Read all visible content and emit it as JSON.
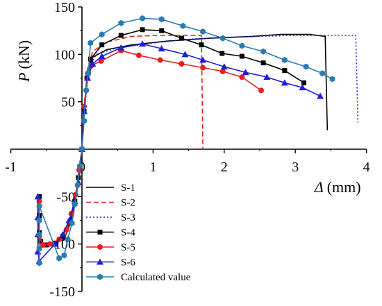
{
  "chart_data": {
    "type": "line",
    "title": "",
    "xlabel": "Δ",
    "xlabel_unit": "(mm)",
    "ylabel": "P",
    "ylabel_unit": "(kN)",
    "xlim": [
      -1,
      4
    ],
    "ylim": [
      -150,
      150
    ],
    "x_ticks": [
      -1,
      0,
      1,
      2,
      3,
      4
    ],
    "x_tick_labels": [
      "-1",
      "0",
      "1",
      "2",
      "3",
      "4"
    ],
    "y_ticks": [
      -150,
      -100,
      -50,
      50,
      100,
      150
    ],
    "y_tick_labels": [
      "-150",
      "-100",
      "-50",
      "50",
      "100",
      "150"
    ],
    "grid": false,
    "legend_position": "bottom-left",
    "series": [
      {
        "name": "S-1",
        "color": "#000000",
        "dash": "solid",
        "marker": "none",
        "points": [
          [
            -0.62,
            -50
          ],
          [
            -0.62,
            -75
          ],
          [
            -0.61,
            -95
          ],
          [
            -0.55,
            -100
          ],
          [
            -0.4,
            -100
          ],
          [
            -0.25,
            -95
          ],
          [
            -0.15,
            -75
          ],
          [
            -0.08,
            -45
          ],
          [
            -0.03,
            -15
          ],
          [
            0,
            0
          ],
          [
            0.03,
            40
          ],
          [
            0.08,
            80
          ],
          [
            0.15,
            97
          ],
          [
            0.35,
            105
          ],
          [
            0.7,
            110
          ],
          [
            1.2,
            114
          ],
          [
            1.8,
            117
          ],
          [
            2.4,
            119
          ],
          [
            2.8,
            121
          ],
          [
            3.2,
            121
          ],
          [
            3.42,
            119
          ],
          [
            3.45,
            20
          ]
        ]
      },
      {
        "name": "S-2",
        "color": "#e8201c",
        "dash": "dashed",
        "marker": "none",
        "points": [
          [
            -0.6,
            -55
          ],
          [
            -0.6,
            -80
          ],
          [
            -0.6,
            -97
          ],
          [
            -0.52,
            -101
          ],
          [
            -0.35,
            -99
          ],
          [
            -0.22,
            -90
          ],
          [
            -0.12,
            -70
          ],
          [
            -0.05,
            -35
          ],
          [
            0,
            0
          ],
          [
            0.03,
            45
          ],
          [
            0.08,
            85
          ],
          [
            0.15,
            103
          ],
          [
            0.35,
            113
          ],
          [
            0.7,
            119
          ],
          [
            1.1,
            120
          ],
          [
            1.4,
            120
          ],
          [
            1.68,
            120
          ],
          [
            1.7,
            0
          ]
        ]
      },
      {
        "name": "S-3",
        "color": "#1f1fd6",
        "dash": "dotted",
        "marker": "none",
        "points": [
          [
            0,
            0
          ],
          [
            0.04,
            45
          ],
          [
            0.1,
            85
          ],
          [
            0.2,
            100
          ],
          [
            0.5,
            107
          ],
          [
            1,
            112
          ],
          [
            1.5,
            116
          ],
          [
            2,
            118
          ],
          [
            2.5,
            119
          ],
          [
            3,
            120
          ],
          [
            3.5,
            120
          ],
          [
            3.85,
            120
          ],
          [
            3.88,
            28
          ]
        ]
      },
      {
        "name": "S-4",
        "color": "#000000",
        "dash": "solid",
        "marker": "square",
        "points": [
          [
            -0.6,
            -50
          ],
          [
            -0.6,
            -70
          ],
          [
            -0.6,
            -88
          ],
          [
            -0.58,
            -97
          ],
          [
            -0.5,
            -101
          ],
          [
            -0.38,
            -99
          ],
          [
            -0.27,
            -92
          ],
          [
            -0.18,
            -78
          ],
          [
            -0.1,
            -55
          ],
          [
            -0.05,
            -30
          ],
          [
            0,
            0
          ],
          [
            0.03,
            40
          ],
          [
            0.07,
            75
          ],
          [
            0.12,
            95
          ],
          [
            0.28,
            110
          ],
          [
            0.55,
            120
          ],
          [
            0.85,
            126
          ],
          [
            1.12,
            125
          ],
          [
            1.4,
            117
          ],
          [
            1.68,
            110
          ],
          [
            1.97,
            101
          ],
          [
            2.25,
            98
          ],
          [
            2.55,
            91
          ],
          [
            2.85,
            83
          ],
          [
            3.12,
            70
          ]
        ]
      },
      {
        "name": "S-5",
        "color": "#e8201c",
        "dash": "solid",
        "marker": "circle",
        "points": [
          [
            -0.6,
            -55
          ],
          [
            -0.6,
            -75
          ],
          [
            -0.6,
            -92
          ],
          [
            -0.55,
            -101
          ],
          [
            -0.45,
            -100
          ],
          [
            -0.32,
            -95
          ],
          [
            -0.22,
            -85
          ],
          [
            -0.15,
            -68
          ],
          [
            -0.09,
            -48
          ],
          [
            -0.04,
            -22
          ],
          [
            0,
            0
          ],
          [
            0.03,
            45
          ],
          [
            0.08,
            80
          ],
          [
            0.13,
            88
          ],
          [
            0.27,
            93
          ],
          [
            0.55,
            104
          ],
          [
            0.8,
            99
          ],
          [
            1.1,
            94
          ],
          [
            1.4,
            90
          ],
          [
            1.7,
            86
          ],
          [
            1.98,
            82
          ],
          [
            2.25,
            76
          ],
          [
            2.52,
            62
          ]
        ]
      },
      {
        "name": "S-6",
        "color": "#1f1fd6",
        "dash": "solid",
        "marker": "triangle",
        "points": [
          [
            -0.62,
            -50
          ],
          [
            -0.62,
            -72
          ],
          [
            -0.62,
            -90
          ],
          [
            -0.62,
            -108
          ],
          [
            -0.6,
            -118
          ],
          [
            -0.38,
            -100
          ],
          [
            -0.27,
            -90
          ],
          [
            -0.18,
            -75
          ],
          [
            -0.1,
            -55
          ],
          [
            -0.05,
            -35
          ],
          [
            0,
            0
          ],
          [
            0.03,
            40
          ],
          [
            0.08,
            75
          ],
          [
            0.15,
            90
          ],
          [
            0.28,
            98
          ],
          [
            0.55,
            107
          ],
          [
            0.85,
            111
          ],
          [
            1.12,
            106
          ],
          [
            1.45,
            100
          ],
          [
            1.7,
            94
          ],
          [
            2.0,
            87
          ],
          [
            2.3,
            81
          ],
          [
            2.6,
            76
          ],
          [
            2.85,
            70
          ],
          [
            3.1,
            65
          ],
          [
            3.35,
            56
          ]
        ]
      },
      {
        "name": "Calculated value",
        "color": "#2a7bb0",
        "dash": "solid",
        "marker": "hexagon",
        "points": [
          [
            -0.6,
            -120
          ],
          [
            -0.6,
            -105
          ],
          [
            -0.6,
            -90
          ],
          [
            -0.6,
            -75
          ],
          [
            -0.6,
            -60
          ],
          [
            -0.32,
            -115
          ],
          [
            -0.25,
            -112
          ],
          [
            -0.2,
            -95
          ],
          [
            -0.14,
            -78
          ],
          [
            -0.1,
            -58
          ],
          [
            -0.06,
            -38
          ],
          [
            -0.03,
            -18
          ],
          [
            0,
            0
          ],
          [
            0.03,
            30
          ],
          [
            0.06,
            62
          ],
          [
            0.09,
            80
          ],
          [
            0.12,
            112
          ],
          [
            0.28,
            121
          ],
          [
            0.55,
            133
          ],
          [
            0.85,
            138
          ],
          [
            1.12,
            137
          ],
          [
            1.42,
            130
          ],
          [
            1.7,
            124
          ],
          [
            1.98,
            117
          ],
          [
            2.25,
            109
          ],
          [
            2.55,
            103
          ],
          [
            2.85,
            94
          ],
          [
            3.15,
            87
          ],
          [
            3.38,
            80
          ],
          [
            3.52,
            74
          ]
        ]
      }
    ]
  }
}
